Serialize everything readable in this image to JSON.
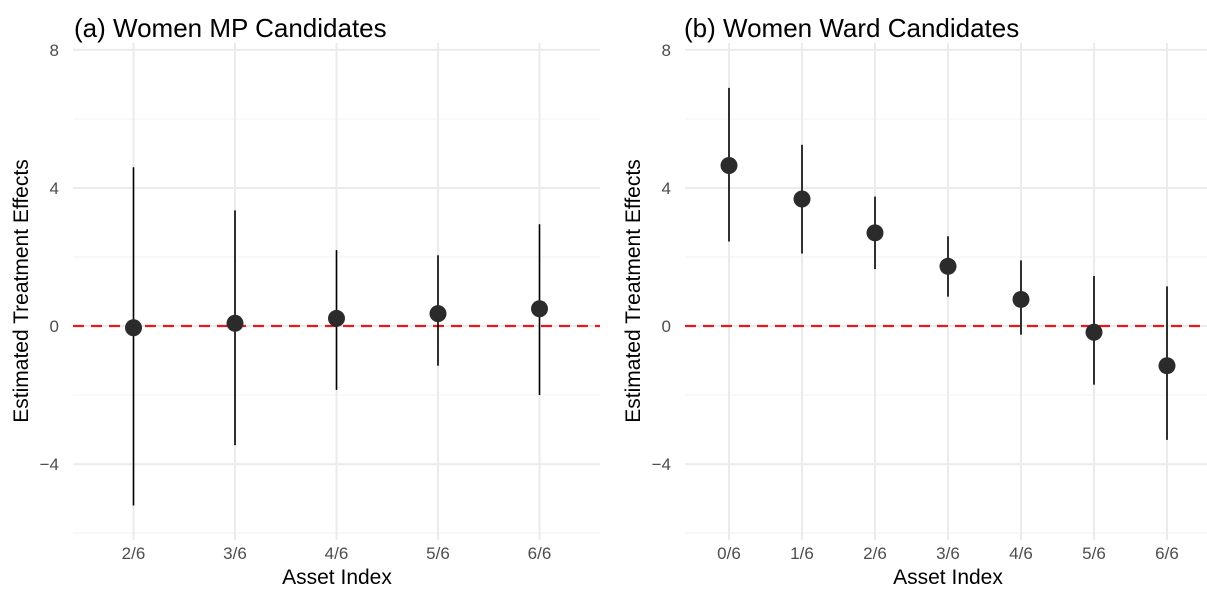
{
  "colors": {
    "reference_line": "#e41a1c",
    "point": "#2b2b2b",
    "errorbar": "#000000",
    "grid": "#ebebeb"
  },
  "chart_data": [
    {
      "type": "scatter",
      "title": "(a) Women MP Candidates",
      "xlabel": "Asset Index",
      "ylabel": "Estimated Treatment Effects",
      "categories": [
        "2/6",
        "3/6",
        "4/6",
        "5/6",
        "6/6"
      ],
      "estimates": [
        -0.05,
        0.08,
        0.22,
        0.36,
        0.5
      ],
      "ci_low": [
        -5.2,
        -3.45,
        -1.85,
        -1.15,
        -2.0
      ],
      "ci_high": [
        4.6,
        3.35,
        2.2,
        2.05,
        2.95
      ],
      "yticks": [
        -4,
        0,
        4,
        8
      ],
      "ylim": [
        -6.2,
        8.2
      ],
      "reference_line": 0,
      "grid": true,
      "legend": "none"
    },
    {
      "type": "scatter",
      "title": "(b) Women Ward Candidates",
      "xlabel": "Asset Index",
      "ylabel": "Estimated Treatment Effects",
      "categories": [
        "0/6",
        "1/6",
        "2/6",
        "3/6",
        "4/6",
        "5/6",
        "6/6"
      ],
      "estimates": [
        4.65,
        3.68,
        2.7,
        1.73,
        0.77,
        -0.18,
        -1.15
      ],
      "ci_low": [
        2.45,
        2.1,
        1.65,
        0.85,
        -0.25,
        -1.7,
        -3.3
      ],
      "ci_high": [
        6.9,
        5.25,
        3.75,
        2.6,
        1.9,
        1.45,
        1.15
      ],
      "yticks": [
        -4,
        0,
        4,
        8
      ],
      "ylim": [
        -6.2,
        8.2
      ],
      "reference_line": 0,
      "grid": true,
      "legend": "none"
    }
  ]
}
